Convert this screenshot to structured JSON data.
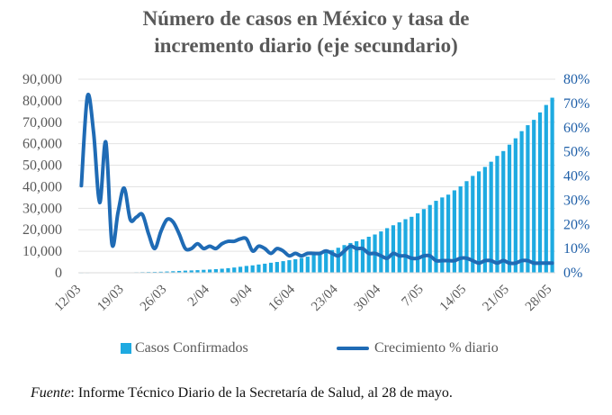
{
  "chart_data": {
    "type": "bar",
    "title_lines": [
      "Número de casos en México y tasa de",
      "incremento diario (eje secundario)"
    ],
    "source_label": "Fuente",
    "source_text": ": Informe Técnico Diario de la Secretaría de Salud, al 28 de mayo.",
    "y_left": {
      "min": 0,
      "max": 90000,
      "ticks": [
        "0",
        "10,000",
        "20,000",
        "30,000",
        "40,000",
        "50,000",
        "60,000",
        "70,000",
        "80,000",
        "90,000"
      ]
    },
    "y_right": {
      "min": 0,
      "max": 80,
      "ticks": [
        "0%",
        "10%",
        "20%",
        "30%",
        "40%",
        "50%",
        "60%",
        "70%",
        "80%"
      ]
    },
    "x_tick_labels": [
      "12/03",
      "19/03",
      "26/03",
      "2/04",
      "9/04",
      "16/04",
      "23/04",
      "30/04",
      "7/05",
      "14/05",
      "21/05",
      "28/05"
    ],
    "colors": {
      "bars": "#1eaae1",
      "line": "#1f6bb5",
      "right_axis": "#1f5fa8"
    },
    "series": [
      {
        "name": "Casos Confirmados",
        "axis": "left",
        "type": "bar",
        "values": [
          15,
          26,
          41,
          53,
          82,
          93,
          118,
          164,
          203,
          251,
          316,
          367,
          405,
          475,
          585,
          717,
          848,
          993,
          1094,
          1215,
          1378,
          1510,
          1688,
          1890,
          2143,
          2439,
          2785,
          3181,
          3441,
          3844,
          4219,
          4661,
          5014,
          5399,
          5847,
          6297,
          6875,
          7497,
          8261,
          8772,
          9501,
          10544,
          11633,
          12872,
          13842,
          14677,
          15529,
          16752,
          17799,
          19224,
          20739,
          22088,
          23471,
          24905,
          26025,
          27634,
          29616,
          31522,
          33460,
          35022,
          36327,
          38324,
          40186,
          42595,
          45032,
          47144,
          49219,
          51633,
          54346,
          56594,
          59567,
          62527,
          65856,
          68620,
          71105,
          74560,
          78023,
          81400
        ]
      },
      {
        "name": "Crecimiento % diario",
        "axis": "right",
        "type": "line",
        "values": [
          36,
          73,
          58,
          29,
          54,
          12,
          25,
          35,
          22,
          23,
          24,
          16,
          10,
          17,
          22,
          21,
          16,
          10,
          10,
          12,
          10,
          11,
          10,
          12,
          13,
          13,
          14,
          14,
          9,
          11,
          10,
          8,
          10,
          9,
          7,
          8,
          7,
          8,
          8,
          8,
          9,
          8,
          7,
          9,
          11,
          10,
          10,
          8,
          8,
          7,
          6,
          8,
          7,
          7,
          6,
          6,
          7,
          7,
          5,
          5,
          5,
          5,
          6,
          6,
          5,
          4,
          5,
          5,
          4,
          5,
          4,
          4,
          5,
          5,
          4,
          4,
          4,
          4
        ]
      }
    ]
  }
}
